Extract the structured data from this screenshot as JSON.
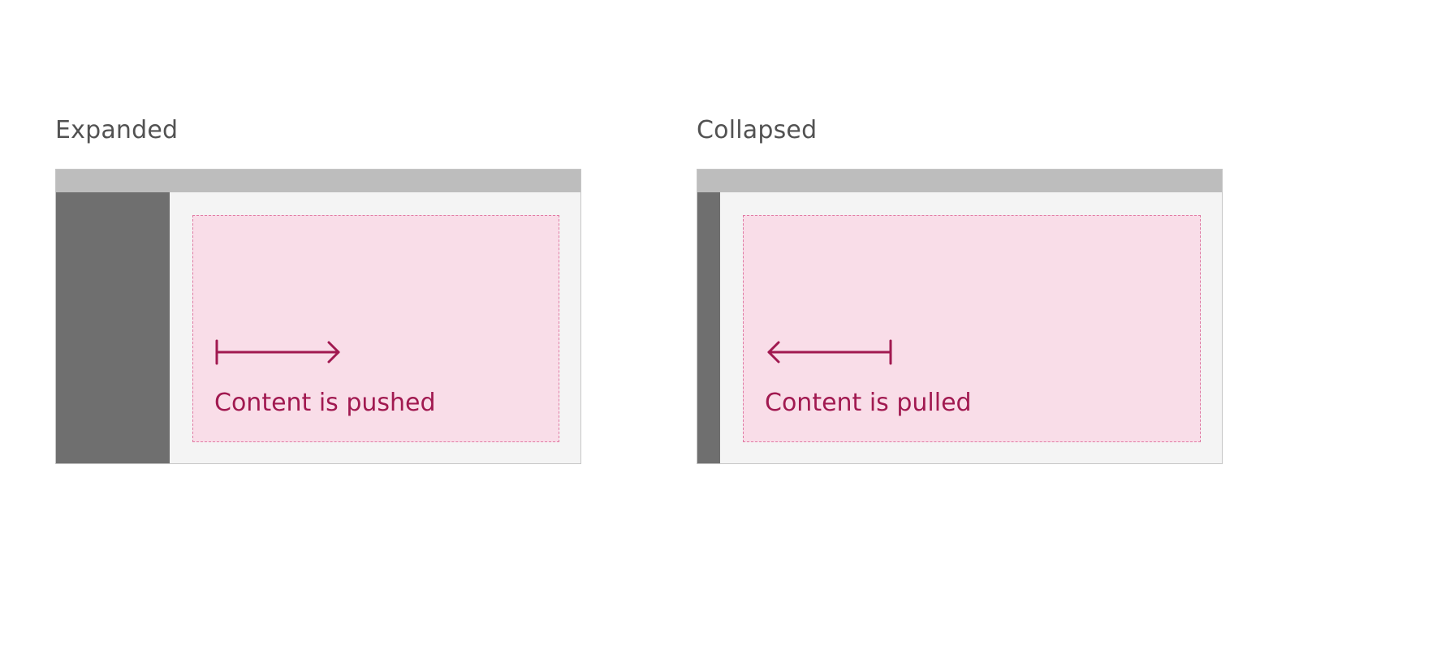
{
  "panels": [
    {
      "title": "Expanded",
      "state": "expanded",
      "content_label": "Content is pushed",
      "arrow_direction": "right"
    },
    {
      "title": "Collapsed",
      "state": "collapsed",
      "content_label": "Content is pulled",
      "arrow_direction": "left"
    }
  ],
  "colors": {
    "title_text": "#525252",
    "header_bar": "#bdbdbd",
    "side_nav": "#6f6f6f",
    "frame_background": "#f4f4f4",
    "content_fill": "#f9dde8",
    "content_border": "#e07aa3",
    "accent": "#a11950"
  }
}
